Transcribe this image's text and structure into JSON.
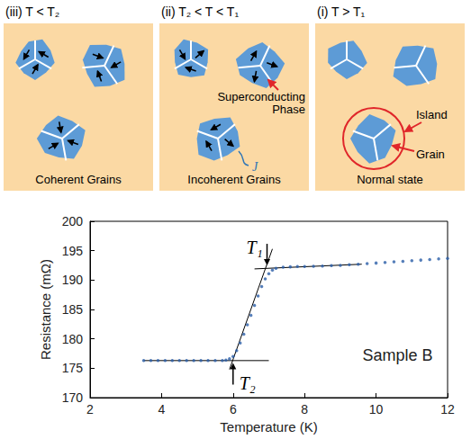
{
  "diagram": {
    "panels": [
      {
        "title": "(iii) T < T₂",
        "caption": "Coherent Grains",
        "arrows": true
      },
      {
        "title": "(ii) T₂ < T < T₁",
        "caption": "Incoherent Grains",
        "arrows": true,
        "labels": {
          "phase": "Superconducting Phase",
          "current": "J"
        }
      },
      {
        "title": "(i) T > T₁",
        "caption": "Normal state",
        "arrows": false,
        "labels": {
          "island": "Island",
          "grain": "Grain"
        }
      }
    ]
  },
  "chart_data": {
    "type": "scatter",
    "x_label": "Temperature (K)",
    "y_label": "Resistance (mΩ)",
    "xlim": [
      2,
      12
    ],
    "xticks": [
      2,
      4,
      6,
      8,
      10,
      12
    ],
    "ylim": [
      170,
      200
    ],
    "yticks": [
      170,
      175,
      180,
      185,
      190,
      195,
      200
    ],
    "grid": false,
    "series": [
      {
        "type": "scatter",
        "color": "#2b5ea8",
        "marker": "circle",
        "x": [
          3.5,
          3.7,
          3.9,
          4.1,
          4.3,
          4.5,
          4.7,
          4.9,
          5.1,
          5.3,
          5.5,
          5.7,
          5.8,
          5.9,
          6.0,
          6.1,
          6.2,
          6.3,
          6.4,
          6.5,
          6.6,
          6.7,
          6.8,
          6.9,
          7.0,
          7.1,
          7.2,
          7.4,
          7.6,
          7.8,
          8.0,
          8.25,
          8.5,
          8.75,
          9.0,
          9.25,
          9.5,
          9.75,
          10.0,
          10.25,
          10.5,
          10.75,
          11.0,
          11.25,
          11.5,
          11.75,
          12.0
        ],
        "values": [
          176.3,
          176.3,
          176.3,
          176.3,
          176.3,
          176.3,
          176.3,
          176.3,
          176.3,
          176.3,
          176.3,
          176.3,
          176.4,
          176.6,
          177.0,
          178.0,
          179.3,
          180.8,
          182.4,
          184.0,
          185.7,
          187.3,
          188.9,
          190.2,
          191.1,
          191.7,
          192.0,
          192.2,
          192.25,
          192.3,
          192.3,
          192.35,
          192.4,
          192.45,
          192.5,
          192.6,
          192.7,
          192.8,
          192.9,
          193.0,
          193.1,
          193.2,
          193.3,
          193.4,
          193.5,
          193.6,
          193.7
        ]
      },
      {
        "type": "line",
        "color": "#000000",
        "line_style": "solid",
        "x": [
          3.5,
          7.0
        ],
        "values": [
          176.3,
          176.3
        ]
      },
      {
        "type": "line",
        "color": "#000000",
        "line_style": "solid",
        "x": [
          6.6,
          9.6
        ],
        "values": [
          191.9,
          192.7
        ]
      },
      {
        "type": "line",
        "color": "#000000",
        "line_style": "solid",
        "x": [
          5.9,
          7.1
        ],
        "values": [
          174.8,
          195.3
        ]
      }
    ],
    "annotations": [
      {
        "text": "Sample B",
        "x": 10.6,
        "y": 177.2
      }
    ],
    "arrow_annotations": [
      {
        "text": "T₁",
        "x": 6.95,
        "y": 192.5,
        "text_x": 6.6,
        "text_y": 195.6
      },
      {
        "text": "T₂",
        "x": 6.0,
        "y": 175.9,
        "text_x": 6.4,
        "text_y": 172.4
      }
    ]
  }
}
